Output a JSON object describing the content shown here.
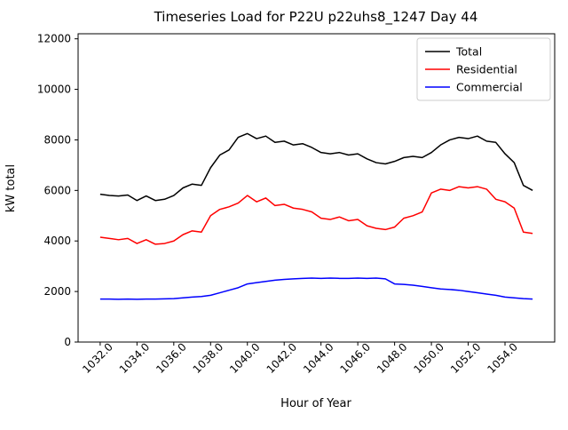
{
  "window": {
    "background": "#ffffff"
  },
  "chart_data": {
    "type": "line",
    "title": "Timeseries Load for P22U p22uhs8_1247  Day 44",
    "xlabel": "Hour of Year",
    "ylabel": "kW total",
    "xlim": [
      1030.8,
      1056.7
    ],
    "ylim": [
      0,
      12200
    ],
    "grid": false,
    "legend_position": "upper right",
    "frame_color": "#000000",
    "legend_border_color": "#cccccc",
    "xticks": [
      1032,
      1034,
      1036,
      1038,
      1040,
      1042,
      1044,
      1046,
      1048,
      1050,
      1052,
      1054
    ],
    "xtick_labels": [
      "1032.0",
      "1034.0",
      "1036.0",
      "1038.0",
      "1040.0",
      "1042.0",
      "1044.0",
      "1046.0",
      "1048.0",
      "1050.0",
      "1052.0",
      "1054.0"
    ],
    "yticks": [
      0,
      2000,
      4000,
      6000,
      8000,
      10000,
      12000
    ],
    "ytick_labels": [
      "0",
      "2000",
      "4000",
      "6000",
      "8000",
      "10000",
      "12000"
    ],
    "x": [
      1032.0,
      1032.5,
      1033.0,
      1033.5,
      1034.0,
      1034.5,
      1035.0,
      1035.5,
      1036.0,
      1036.5,
      1037.0,
      1037.5,
      1038.0,
      1038.5,
      1039.0,
      1039.5,
      1040.0,
      1040.5,
      1041.0,
      1041.5,
      1042.0,
      1042.5,
      1043.0,
      1043.5,
      1044.0,
      1044.5,
      1045.0,
      1045.5,
      1046.0,
      1046.5,
      1047.0,
      1047.5,
      1048.0,
      1048.5,
      1049.0,
      1049.5,
      1050.0,
      1050.5,
      1051.0,
      1051.5,
      1052.0,
      1052.5,
      1053.0,
      1053.5,
      1054.0,
      1054.5,
      1055.0,
      1055.5
    ],
    "series": [
      {
        "name": "Total",
        "color": "#000000",
        "values": [
          5850,
          5800,
          5780,
          5820,
          5600,
          5780,
          5600,
          5650,
          5800,
          6100,
          6250,
          6200,
          6900,
          7400,
          7600,
          8100,
          8250,
          8050,
          8150,
          7900,
          7950,
          7800,
          7850,
          7700,
          7500,
          7450,
          7500,
          7400,
          7450,
          7250,
          7100,
          7050,
          7150,
          7300,
          7350,
          7300,
          7500,
          7800,
          8000,
          8100,
          8050,
          8150,
          7950,
          7900,
          7450,
          7100,
          6200,
          6000
        ]
      },
      {
        "name": "Residential",
        "color": "#ff0000",
        "values": [
          4150,
          4100,
          4050,
          4100,
          3900,
          4050,
          3870,
          3900,
          4000,
          4250,
          4400,
          4350,
          5000,
          5250,
          5350,
          5500,
          5800,
          5550,
          5700,
          5400,
          5450,
          5300,
          5250,
          5150,
          4900,
          4850,
          4950,
          4800,
          4850,
          4600,
          4500,
          4450,
          4550,
          4900,
          5000,
          5150,
          5900,
          6050,
          6000,
          6150,
          6100,
          6150,
          6050,
          5650,
          5550,
          5300,
          4350,
          4300
        ]
      },
      {
        "name": "Commercial",
        "color": "#0000ff",
        "values": [
          1700,
          1700,
          1690,
          1700,
          1690,
          1700,
          1700,
          1710,
          1720,
          1750,
          1780,
          1800,
          1850,
          1950,
          2050,
          2150,
          2300,
          2350,
          2400,
          2450,
          2480,
          2500,
          2520,
          2530,
          2520,
          2530,
          2520,
          2520,
          2530,
          2520,
          2530,
          2500,
          2300,
          2280,
          2250,
          2200,
          2150,
          2100,
          2080,
          2050,
          2000,
          1950,
          1900,
          1850,
          1780,
          1750,
          1720,
          1700
        ]
      }
    ]
  }
}
